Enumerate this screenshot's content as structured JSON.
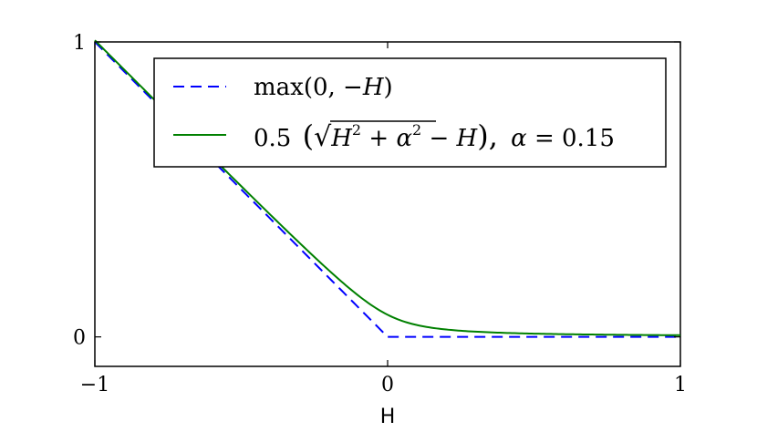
{
  "chart_data": {
    "type": "line",
    "xlabel": "H",
    "ylabel": "",
    "title": "",
    "xlim": [
      -1,
      1
    ],
    "ylim": [
      -0.1,
      1
    ],
    "x_ticks": [
      {
        "value": -1,
        "label": "−1"
      },
      {
        "value": 0,
        "label": "0"
      },
      {
        "value": 1,
        "label": "1"
      }
    ],
    "y_ticks": [
      {
        "value": 0,
        "label": "0"
      },
      {
        "value": 1,
        "label": "1"
      }
    ],
    "grid": false,
    "legend_position": "top-right",
    "series": [
      {
        "name": "max(0, −H)",
        "color": "#0000ff",
        "dash": "dashed",
        "formula": "max(0,-H)",
        "x": [
          -1,
          -0.5,
          0,
          0.5,
          1
        ],
        "y": [
          1,
          0.5,
          0,
          0,
          0
        ]
      },
      {
        "name": "0.5 (√(H² + α²) − H), α = 0.15",
        "color": "#008000",
        "dash": "solid",
        "alpha": 0.15,
        "formula": "0.5*(sqrt(H^2+alpha^2)-H)",
        "x": [
          -1,
          -0.5,
          -0.25,
          0,
          0.25,
          0.5,
          1
        ],
        "y": [
          1.0056,
          0.511,
          0.2708,
          0.075,
          0.0208,
          0.011,
          0.0056
        ]
      }
    ],
    "legend": {
      "entry1": {
        "prefix": "max(0, ",
        "minus": "−",
        "var": "H",
        "suffix": ")"
      },
      "entry2": {
        "coef": "0.5",
        "open": "(",
        "sqrt": "√",
        "h": "H",
        "h_exp": "2",
        "plus": " + ",
        "a": "α",
        "a_exp": "2",
        "minus": " − ",
        "h2": "H",
        "close": "),",
        "alpha_sym": "α",
        "eq": " = 0.15"
      }
    }
  }
}
